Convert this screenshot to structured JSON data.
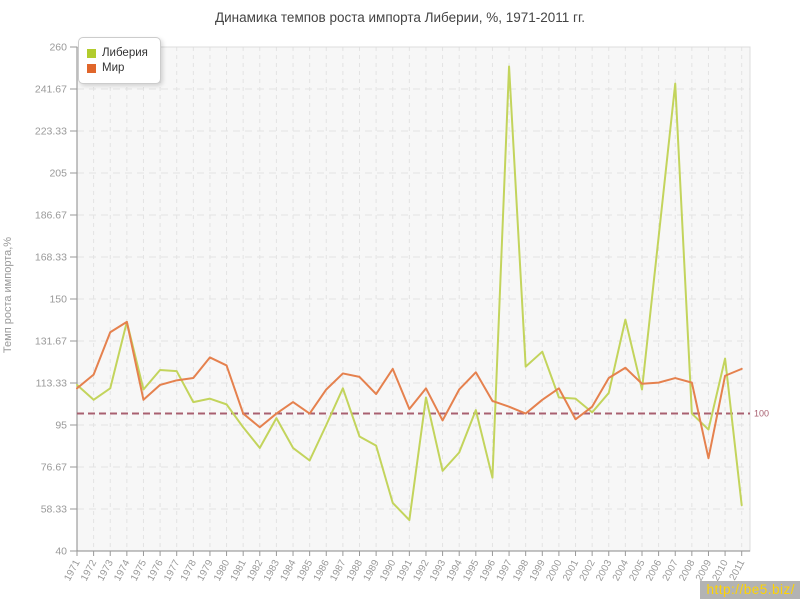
{
  "page": {
    "title": "Динамика темпов роста импорта Либерии, %, 1971-2011 гг."
  },
  "watermark": {
    "text": "http://be5.biz/",
    "bg": "#b3b3b3",
    "color": "#ffd400"
  },
  "chart_data": {
    "type": "line",
    "title": "Динамика темпов роста импорта Либерии, %, 1971-2011 гг.",
    "xlabel": "",
    "ylabel": "Темп роста импорта,%",
    "ylim": [
      40,
      260
    ],
    "grid": true,
    "legend_position": "top-left",
    "y_ticks": [
      "260",
      "241.67",
      "223.33",
      "205",
      "186.67",
      "168.33",
      "150",
      "131.67",
      "113.33",
      "95",
      "76.67",
      "58.33",
      "40"
    ],
    "categories": [
      "1971",
      "1972",
      "1973",
      "1974",
      "1975",
      "1976",
      "1977",
      "1978",
      "1979",
      "1980",
      "1981",
      "1982",
      "1983",
      "1984",
      "1985",
      "1986",
      "1987",
      "1988",
      "1989",
      "1990",
      "1991",
      "1992",
      "1993",
      "1994",
      "1995",
      "1996",
      "1997",
      "1998",
      "1999",
      "2000",
      "2001",
      "2002",
      "2003",
      "2004",
      "2005",
      "2006",
      "2007",
      "2008",
      "2009",
      "2010",
      "2011"
    ],
    "series": [
      {
        "name": "Либерия",
        "color": "#c3d45c",
        "legend_color": "#b2cc2d",
        "values": [
          112.5,
          106,
          111,
          140,
          110.5,
          119,
          118.5,
          105,
          106.5,
          104,
          94,
          85,
          98,
          85,
          79.5,
          95,
          111,
          90,
          86,
          61,
          53.5,
          107,
          75,
          83,
          101.5,
          72,
          251.5,
          120.5,
          127,
          107,
          106.5,
          100.5,
          109,
          141,
          110.5,
          177,
          244,
          100,
          93,
          124,
          60
        ]
      },
      {
        "name": "Мир",
        "color": "#e5814e",
        "legend_color": "#e0662b",
        "values": [
          111,
          117,
          135.5,
          140,
          106,
          112.5,
          114.5,
          115.5,
          124.5,
          121,
          100,
          94,
          100,
          105,
          100,
          110.5,
          117.5,
          116,
          108.5,
          119.5,
          102,
          111,
          97,
          110.5,
          118,
          105.5,
          103,
          100,
          106,
          111,
          97.5,
          103,
          115.5,
          120,
          113,
          113.5,
          115.5,
          113.5,
          80.5,
          116.5,
          119.5
        ]
      }
    ],
    "reference_line": {
      "value": 100,
      "label": "100",
      "color": "#a86070"
    },
    "colors": {
      "plot_bg": "#f7f7f7",
      "grid": "#e3e3e3",
      "border": "#dcdcdc",
      "axis": "#8a8a8a",
      "tick_text": "#999999",
      "title_text": "#444444"
    }
  }
}
